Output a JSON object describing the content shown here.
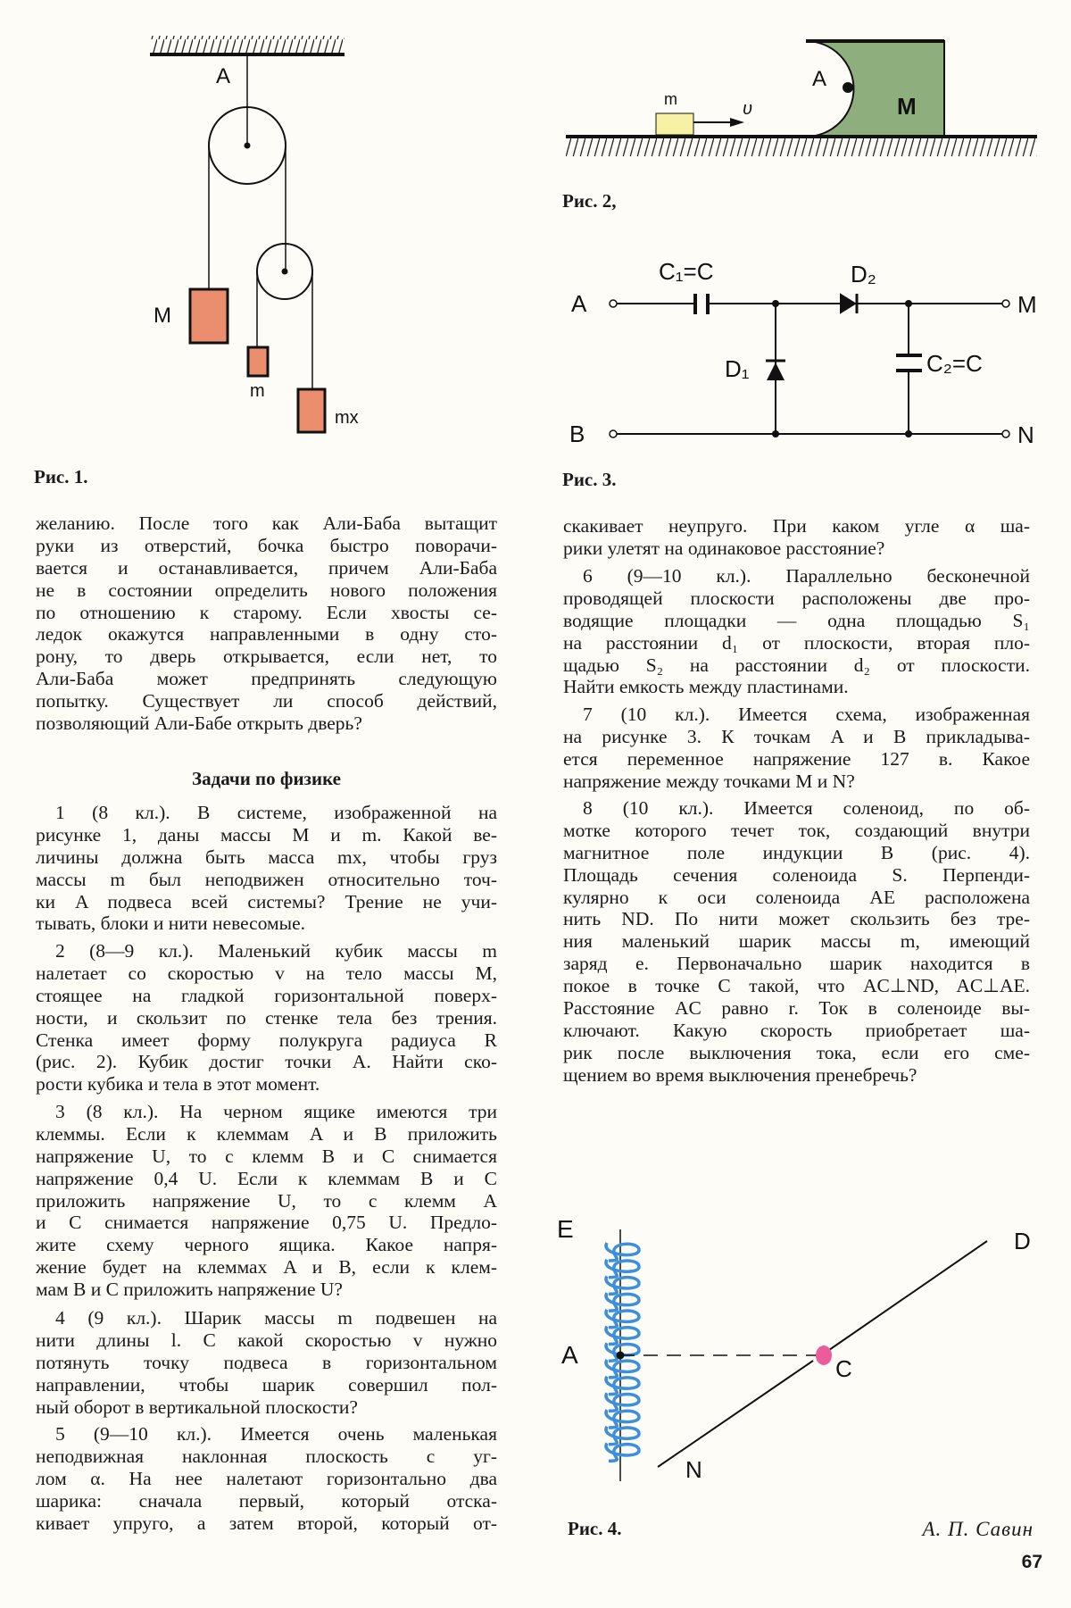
{
  "figure_1": {
    "caption": "Рис. 1.",
    "labels": {
      "A": "A",
      "M": "M",
      "m": "m",
      "mx": "mx"
    }
  },
  "figure_2": {
    "caption": "Рис. 2,",
    "labels": {
      "A": "A",
      "M": "M",
      "m": "m",
      "v": "υ"
    },
    "colors": {
      "body": "#8fae7e",
      "cube": "#f6f1a4"
    }
  },
  "figure_3": {
    "caption": "Рис. 3.",
    "labels": {
      "A": "A",
      "B": "B",
      "M": "M",
      "N": "N",
      "C1": "C₁=C",
      "C2": "C₂=C",
      "D1": "D₁",
      "D2": "D₂"
    }
  },
  "figure_4": {
    "caption": "Рис. 4.",
    "labels": {
      "E": "E",
      "A": "A",
      "C": "C",
      "D": "D",
      "N": "N"
    },
    "colors": {
      "coil": "#3b8fdc",
      "ball": "#ea5c9a"
    }
  },
  "block_colors": {
    "mass": "#ea8e6e"
  },
  "heading": "Задачи по физике",
  "author": "А. П. Савин",
  "page_number": "67",
  "left_column": [
    {
      "indent": false,
      "lines": [
        "желанию. После того как Али-Баба вытащит",
        "руки из отверстий, бочка быстро поворачи-",
        "вается и останавливается, причем Али-Баба",
        "не в состоянии определить нового положения",
        "по отношению к старому. Если хвосты се-",
        "ледок окажутся направленными в одну сто-",
        "рону, то дверь открывается, если нет, то",
        "Али-Баба может предпринять следующую",
        "попытку. Существует ли способ действий,",
        "позволяющий Али-Бабе открыть дверь?"
      ]
    },
    {
      "indent": true,
      "lines": [
        "1 (8 кл.). В системе, изображенной на",
        "рисунке 1, даны массы M и m. Какой ве-",
        "личины должна быть масса mx, чтобы груз",
        "массы m был неподвижен относительно точ-",
        "ки A подвеса всей системы? Трение не учи-",
        "тывать, блоки и нити невесомые."
      ]
    },
    {
      "indent": true,
      "lines": [
        "2 (8—9 кл.). Маленький кубик массы m",
        "налетает со скоростью v на тело массы M,",
        "стоящее на гладкой горизонтальной поверх-",
        "ности, и скользит по стенке тела без трения.",
        "Стенка имеет форму полукруга радиуса R",
        "(рис. 2). Кубик достиг точки A. Найти ско-",
        "рости кубика и тела в этот момент."
      ]
    },
    {
      "indent": true,
      "lines": [
        "3 (8 кл.). На черном ящике имеются три",
        "клеммы. Если к клеммам A и B приложить",
        "напряжение U, то с клемм B и C снимается",
        "напряжение 0,4 U. Если к клеммам B и C",
        "приложить напряжение U, то с клемм A",
        "и C снимается напряжение 0,75 U. Предло-",
        "жите схему черного ящика. Какое напря-",
        "жение будет на клеммах A и B, если к клем-",
        "мам B и C приложить напряжение U?"
      ]
    },
    {
      "indent": true,
      "lines": [
        "4 (9 кл.). Шарик массы m подвешен на",
        "нити длины l. С какой скоростью v нужно",
        "потянуть точку подвеса в горизонтальном",
        "направлении, чтобы шарик совершил пол-",
        "ный оборот в вертикальной плоскости?"
      ]
    },
    {
      "indent": true,
      "cont": true,
      "lines": [
        "5 (9—10 кл.). Имеется очень маленькая",
        "неподвижная наклонная плоскость с уг-",
        "лом α. На нее налетают горизонтально два",
        "шарика: сначала первый, который отска-",
        "кивает упруго, а затем второй, который от-"
      ]
    }
  ],
  "right_column": [
    {
      "indent": false,
      "lines": [
        "скакивает неупруго. При каком угле α ша-",
        "рики улетят на одинаковое расстояние?"
      ]
    },
    {
      "indent": true,
      "lines": [
        "6 (9—10 кл.). Параллельно бесконечной",
        "проводящей плоскости расположены две про-",
        "водящие площадки — одна площадью S₁",
        "на расстоянии d₁ от плоскости, вторая пло-",
        "щадью S₂ на расстоянии d₂ от плоскости.",
        "Найти емкость между пластинами."
      ]
    },
    {
      "indent": true,
      "lines": [
        "7 (10 кл.). Имеется схема, изображенная",
        "на рисунке 3. К точкам A и B прикладыва-",
        "ется переменное напряжение 127 в. Какое",
        "напряжение между точками M и N?"
      ]
    },
    {
      "indent": true,
      "lines": [
        "8 (10 кл.). Имеется соленоид, по об-",
        "мотке которого течет ток, создающий внутри",
        "магнитное поле индукции B (рис. 4).",
        "Площадь сечения соленоида S. Перпенди-",
        "кулярно к оси соленоида AE расположена",
        "нить ND. По нити может скользить без тре-",
        "ния маленький шарик массы m, имеющий",
        "заряд e. Первоначально шарик находится в",
        "покое в точке C такой, что AC⊥ND, AC⊥AE.",
        "Расстояние AC равно r. Ток в соленоиде вы-",
        "ключают. Какую скорость приобретает ша-",
        "рик после выключения тока, если его сме-",
        "щением во время выключения пренебречь?"
      ]
    }
  ]
}
